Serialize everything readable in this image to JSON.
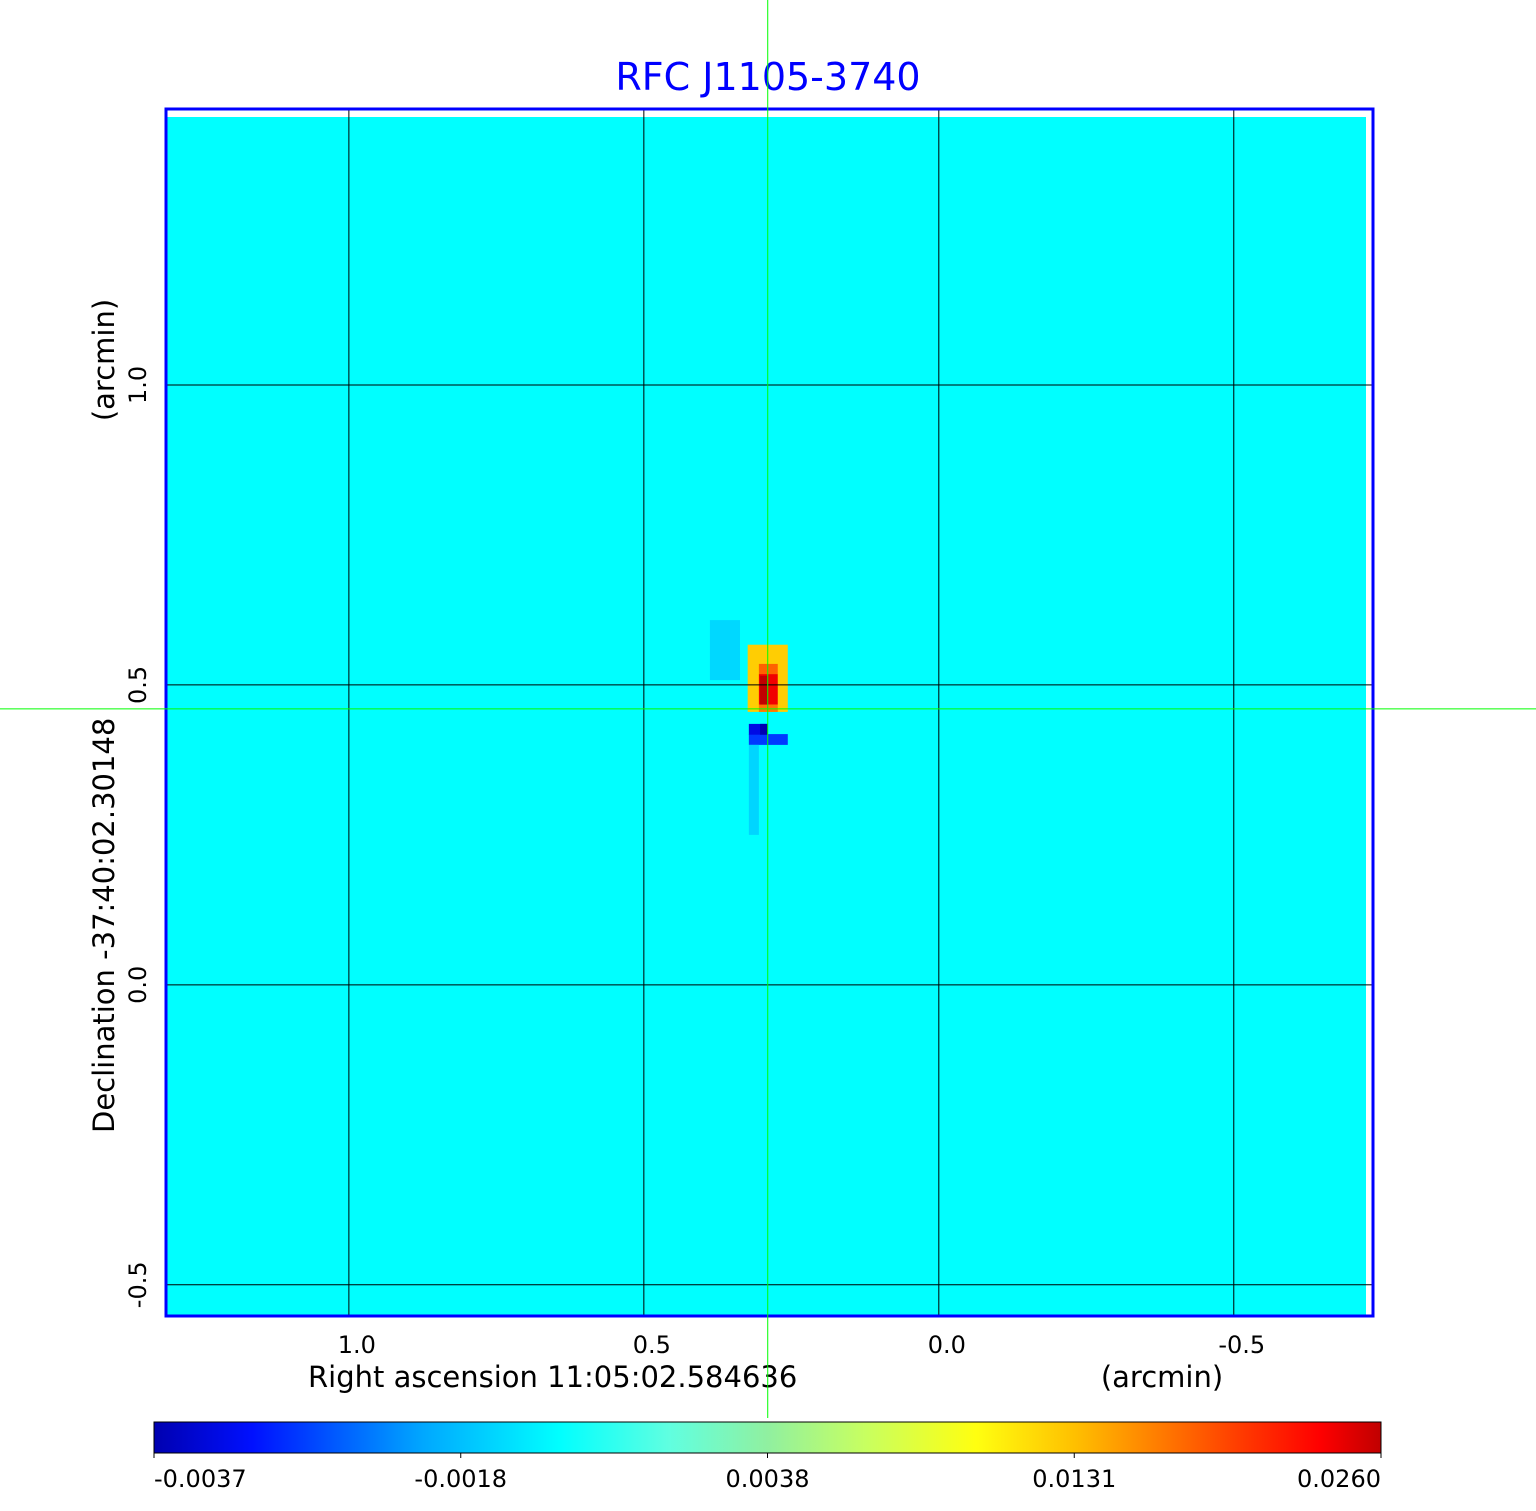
{
  "chart_data": {
    "type": "heatmap",
    "title": "RFC J1105-3740",
    "xlabel": "Right ascension  11:05:02.584636",
    "xunit": "(arcmin)",
    "ylabel": "Declination  -37:40:02.30148",
    "yunit": "(arcmin)",
    "xlim": [
      1.31,
      -0.736
    ],
    "ylim": [
      -0.552,
      1.46
    ],
    "xticks": [
      {
        "value": 1.0,
        "label": "1.0"
      },
      {
        "value": 0.5,
        "label": "0.5"
      },
      {
        "value": 0.0,
        "label": "0.0"
      },
      {
        "value": -0.5,
        "label": "-0.5"
      }
    ],
    "yticks": [
      {
        "value": 1.0,
        "label": "1.0"
      },
      {
        "value": 0.5,
        "label": "0.5"
      },
      {
        "value": 0.0,
        "label": "0.0"
      },
      {
        "value": -0.5,
        "label": "-0.5"
      }
    ],
    "grid": true,
    "crosshair": {
      "ra": 0.29,
      "dec": 0.46
    },
    "background_value": 0.0,
    "features": [
      {
        "ra": [
          0.388,
          0.337
        ],
        "dec": [
          0.608,
          0.508
        ],
        "value": -0.0011
      },
      {
        "ra": [
          0.324,
          0.256
        ],
        "dec": [
          0.567,
          0.455
        ],
        "value": 0.0125
      },
      {
        "ra": [
          0.305,
          0.273
        ],
        "dec": [
          0.535,
          0.518
        ],
        "value": 0.018
      },
      {
        "ra": [
          0.305,
          0.273
        ],
        "dec": [
          0.518,
          0.467
        ],
        "value": 0.024
      },
      {
        "ra": [
          0.303,
          0.29
        ],
        "dec": [
          0.515,
          0.467
        ],
        "value": 0.026
      },
      {
        "ra": [
          0.305,
          0.273
        ],
        "dec": [
          0.467,
          0.455
        ],
        "value": 0.017
      },
      {
        "ra": [
          0.322,
          0.256
        ],
        "dec": [
          0.418,
          0.4
        ],
        "value": -0.0028
      },
      {
        "ra": [
          0.322,
          0.29
        ],
        "dec": [
          0.435,
          0.417
        ],
        "value": -0.0033
      },
      {
        "ra": [
          0.303,
          0.29
        ],
        "dec": [
          0.435,
          0.417
        ],
        "value": -0.0037
      },
      {
        "ra": [
          0.322,
          0.305
        ],
        "dec": [
          0.4,
          0.25
        ],
        "value": -0.0012
      }
    ],
    "colorbar": {
      "ticks": [
        {
          "value": -0.0037,
          "label": "-0.0037"
        },
        {
          "value": -0.0018,
          "label": "-0.0018"
        },
        {
          "value": 0.0038,
          "label": "0.0038"
        },
        {
          "value": 0.0131,
          "label": "0.0131"
        },
        {
          "value": 0.026,
          "label": "0.0260"
        }
      ]
    },
    "colors": {
      "title": "#0000ff",
      "frame": "#0000ff",
      "grid": "#000000",
      "crosshair": "#00ff00"
    }
  }
}
